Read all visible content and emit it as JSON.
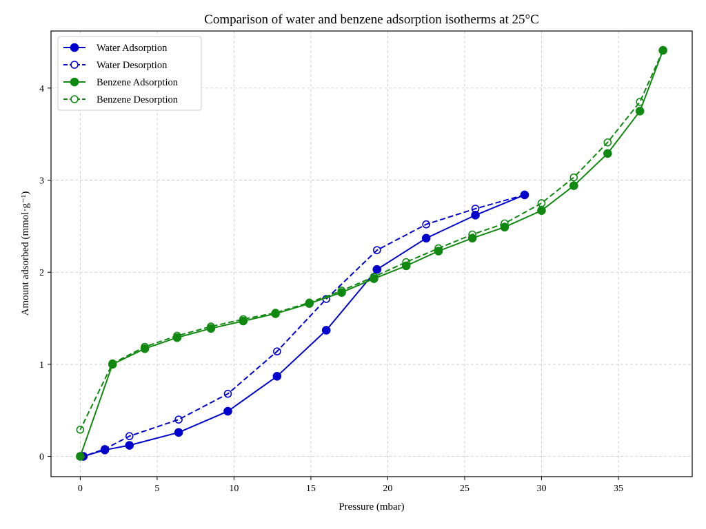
{
  "chart_data": {
    "type": "line",
    "title": "Comparison of water and benzene adsorption isotherms at 25°C",
    "xlabel": "Pressure (mbar)",
    "ylabel": "Amount adsorbed (mmol·g⁻¹)",
    "xlim": [
      -1.9,
      39.8
    ],
    "ylim": [
      -0.22,
      4.62
    ],
    "xticks": [
      0,
      5,
      10,
      15,
      20,
      25,
      30,
      35
    ],
    "yticks": [
      0,
      1,
      2,
      3,
      4
    ],
    "grid": true,
    "legend_position": "top-left",
    "series": [
      {
        "name": "Water Adsorption",
        "color": "#0000cc",
        "line": "solid",
        "marker": "filled-circle",
        "x": [
          0.2,
          1.6,
          3.2,
          6.4,
          9.6,
          12.8,
          16.0,
          19.3,
          22.5,
          25.7,
          28.9
        ],
        "y": [
          0.0,
          0.07,
          0.12,
          0.26,
          0.49,
          0.87,
          1.37,
          2.03,
          2.37,
          2.62,
          2.84
        ]
      },
      {
        "name": "Water Desorption",
        "color": "#0000cc",
        "line": "dashed",
        "marker": "hollow-circle",
        "x": [
          28.9,
          25.7,
          22.5,
          19.3,
          16.0,
          12.8,
          9.6,
          6.4,
          3.2,
          1.6,
          0.2
        ],
        "y": [
          2.84,
          2.69,
          2.52,
          2.24,
          1.71,
          1.14,
          0.68,
          0.4,
          0.22,
          0.08,
          0.0
        ]
      },
      {
        "name": "Benzene Adsorption",
        "color": "#118811",
        "line": "solid",
        "marker": "filled-circle",
        "x": [
          0.0,
          2.1,
          4.2,
          6.3,
          8.5,
          10.6,
          12.7,
          14.9,
          17.0,
          19.1,
          21.2,
          23.3,
          25.5,
          27.6,
          30.0,
          32.1,
          34.3,
          36.4,
          37.9
        ],
        "y": [
          0.0,
          1.0,
          1.17,
          1.29,
          1.39,
          1.47,
          1.55,
          1.66,
          1.78,
          1.93,
          2.07,
          2.23,
          2.37,
          2.49,
          2.67,
          2.94,
          3.29,
          3.75,
          4.41
        ]
      },
      {
        "name": "Benzene Desorption",
        "color": "#118811",
        "line": "dashed",
        "marker": "hollow-circle",
        "x": [
          37.9,
          36.4,
          34.3,
          32.1,
          30.0,
          27.6,
          25.5,
          23.3,
          21.2,
          19.1,
          17.0,
          14.9,
          12.7,
          10.6,
          8.5,
          6.3,
          4.2,
          2.1,
          0.0
        ],
        "y": [
          4.41,
          3.85,
          3.41,
          3.03,
          2.75,
          2.53,
          2.41,
          2.26,
          2.11,
          1.95,
          1.8,
          1.67,
          1.56,
          1.49,
          1.41,
          1.31,
          1.19,
          1.01,
          0.29
        ]
      }
    ]
  }
}
